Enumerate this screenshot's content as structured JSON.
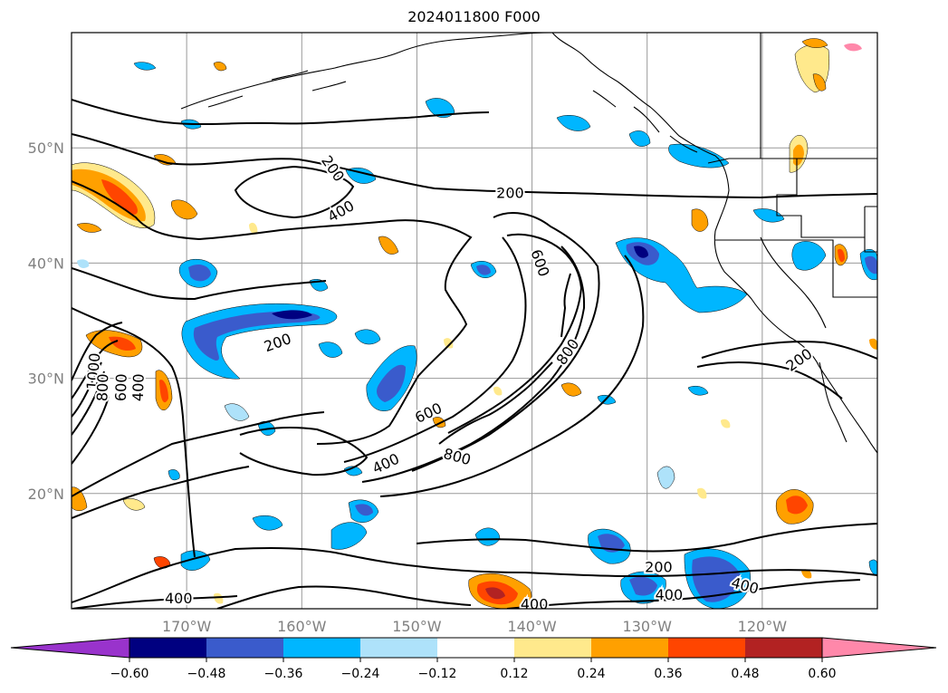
{
  "title": "2024011800 F000",
  "map": {
    "lon_range": [
      -180,
      -110
    ],
    "lat_range": [
      10,
      60
    ],
    "grid": true
  },
  "lat_labels": [
    {
      "lat": 50,
      "label": "50°N"
    },
    {
      "lat": 40,
      "label": "40°N"
    },
    {
      "lat": 30,
      "label": "30°N"
    },
    {
      "lat": 20,
      "label": "20°N"
    }
  ],
  "lon_labels": [
    {
      "lon": -170,
      "label": "170°W"
    },
    {
      "lon": -160,
      "label": "160°W"
    },
    {
      "lon": -150,
      "label": "150°W"
    },
    {
      "lon": -140,
      "label": "140°W"
    },
    {
      "lon": -130,
      "label": "130°W"
    },
    {
      "lon": -120,
      "label": "120°W"
    }
  ],
  "colorbar": {
    "colors": [
      "#9933cc",
      "#000080",
      "#3a5bcc",
      "#00b6ff",
      "#aee2fa",
      "#ffffff",
      "#ffe98c",
      "#ffa000",
      "#ff4500",
      "#b22222",
      "#ff88aa"
    ],
    "tick_labels": [
      "−0.60",
      "−0.48",
      "−0.36",
      "−0.24",
      "−0.12",
      "0.12",
      "0.24",
      "0.36",
      "0.48",
      "0.60"
    ]
  },
  "contour_labels": [
    {
      "text": "200",
      "lon": -157.3,
      "lat": 48.2,
      "rot": 55
    },
    {
      "text": "400",
      "lon": -156.6,
      "lat": 44.5,
      "rot": -30
    },
    {
      "text": "200",
      "lon": -141.9,
      "lat": 46.1,
      "rot": 0
    },
    {
      "text": "600",
      "lon": -139.3,
      "lat": 40.0,
      "rot": 70
    },
    {
      "text": "800",
      "lon": -136.9,
      "lat": 32.3,
      "rot": -55
    },
    {
      "text": "200",
      "lon": -162.1,
      "lat": 33.1,
      "rot": -20
    },
    {
      "text": "1000",
      "lon": -178.1,
      "lat": 30.6,
      "rot": -85
    },
    {
      "text": "800",
      "lon": -177.3,
      "lat": 29.2,
      "rot": -88
    },
    {
      "text": "600",
      "lon": -175.7,
      "lat": 29.2,
      "rot": -88
    },
    {
      "text": "400",
      "lon": -174.2,
      "lat": 29.2,
      "rot": -88
    },
    {
      "text": "600",
      "lon": -149.0,
      "lat": 27.0,
      "rot": -25
    },
    {
      "text": "800",
      "lon": -146.5,
      "lat": 23.2,
      "rot": 15
    },
    {
      "text": "400",
      "lon": -152.7,
      "lat": 22.6,
      "rot": -25
    },
    {
      "text": "200",
      "lon": -116.8,
      "lat": 31.6,
      "rot": -35
    },
    {
      "text": "200",
      "lon": -129.0,
      "lat": 13.6,
      "rot": 0
    },
    {
      "text": "400",
      "lon": -128.1,
      "lat": 11.2,
      "rot": 0
    },
    {
      "text": "400",
      "lon": -121.5,
      "lat": 12.0,
      "rot": 15
    },
    {
      "text": "400",
      "lon": -170.7,
      "lat": 10.9,
      "rot": 0
    },
    {
      "text": "400",
      "lon": -139.8,
      "lat": 10.4,
      "rot": 0
    }
  ]
}
